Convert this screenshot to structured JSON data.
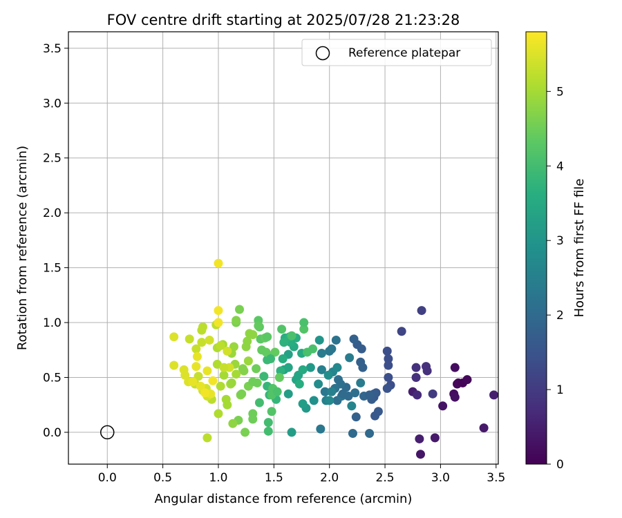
{
  "chart_data": {
    "type": "scatter",
    "title": "FOV centre drift starting at 2025/07/28 21:23:28",
    "xlabel": "Angular distance from reference (arcmin)",
    "ylabel": "Rotation from reference (arcmin)",
    "xlim": [
      -0.35,
      3.52
    ],
    "ylim": [
      -0.29,
      3.65
    ],
    "xticks": [
      "0.0",
      "0.5",
      "1.0",
      "1.5",
      "2.0",
      "2.5",
      "3.0",
      "3.5"
    ],
    "yticks": [
      "0.0",
      "0.5",
      "1.0",
      "1.5",
      "2.0",
      "2.5",
      "3.0",
      "3.5"
    ],
    "grid": true,
    "legend": {
      "placement": "top-right",
      "entries": [
        "Reference platepar"
      ]
    },
    "reference_point": {
      "x": 0.0,
      "y": 0.0,
      "marker": "open-circle"
    },
    "colorbar": {
      "label": "Hours from first FF file",
      "range": [
        0,
        5.8
      ],
      "ticks": [
        "0",
        "1",
        "2",
        "3",
        "4",
        "5"
      ],
      "colormap": "viridis"
    },
    "points": [
      {
        "x": 3.13,
        "y": 0.59,
        "t": 0.2
      },
      {
        "x": 3.15,
        "y": 0.44,
        "t": 0.1
      },
      {
        "x": 3.16,
        "y": 0.45,
        "t": 0.1
      },
      {
        "x": 3.2,
        "y": 0.45,
        "t": 0.05
      },
      {
        "x": 3.24,
        "y": 0.48,
        "t": 0.1
      },
      {
        "x": 3.12,
        "y": 0.35,
        "t": 0.2
      },
      {
        "x": 3.13,
        "y": 0.32,
        "t": 0.25
      },
      {
        "x": 3.02,
        "y": 0.24,
        "t": 0.3
      },
      {
        "x": 2.95,
        "y": -0.05,
        "t": 0.4
      },
      {
        "x": 3.39,
        "y": 0.04,
        "t": 0.4
      },
      {
        "x": 3.48,
        "y": 0.34,
        "t": 0.5
      },
      {
        "x": 2.82,
        "y": -0.2,
        "t": 0.35
      },
      {
        "x": 2.81,
        "y": -0.06,
        "t": 0.5
      },
      {
        "x": 2.75,
        "y": 0.37,
        "t": 0.5
      },
      {
        "x": 2.79,
        "y": 0.34,
        "t": 0.7
      },
      {
        "x": 2.78,
        "y": 0.59,
        "t": 0.8
      },
      {
        "x": 2.78,
        "y": 0.5,
        "t": 0.8
      },
      {
        "x": 2.87,
        "y": 0.6,
        "t": 0.8
      },
      {
        "x": 2.88,
        "y": 0.56,
        "t": 0.8
      },
      {
        "x": 2.93,
        "y": 0.35,
        "t": 1.0
      },
      {
        "x": 2.83,
        "y": 1.11,
        "t": 1.1
      },
      {
        "x": 2.65,
        "y": 0.92,
        "t": 1.2
      },
      {
        "x": 2.52,
        "y": 0.74,
        "t": 1.4
      },
      {
        "x": 2.53,
        "y": 0.67,
        "t": 1.4
      },
      {
        "x": 2.53,
        "y": 0.61,
        "t": 1.4
      },
      {
        "x": 2.53,
        "y": 0.5,
        "t": 1.4
      },
      {
        "x": 2.55,
        "y": 0.43,
        "t": 1.4
      },
      {
        "x": 2.52,
        "y": 0.4,
        "t": 1.5
      },
      {
        "x": 2.44,
        "y": 0.19,
        "t": 1.6
      },
      {
        "x": 2.41,
        "y": 0.15,
        "t": 1.6
      },
      {
        "x": 2.42,
        "y": 0.36,
        "t": 1.6
      },
      {
        "x": 2.4,
        "y": 0.32,
        "t": 1.6
      },
      {
        "x": 2.4,
        "y": 0.35,
        "t": 1.7
      },
      {
        "x": 2.38,
        "y": 0.3,
        "t": 1.7
      },
      {
        "x": 2.29,
        "y": 0.76,
        "t": 1.7
      },
      {
        "x": 2.25,
        "y": 0.8,
        "t": 1.7
      },
      {
        "x": 2.22,
        "y": 0.85,
        "t": 1.8
      },
      {
        "x": 2.28,
        "y": 0.64,
        "t": 1.8
      },
      {
        "x": 2.3,
        "y": 0.59,
        "t": 1.8
      },
      {
        "x": 2.24,
        "y": 0.14,
        "t": 1.8
      },
      {
        "x": 2.21,
        "y": -0.01,
        "t": 2.0
      },
      {
        "x": 2.36,
        "y": -0.01,
        "t": 2.0
      },
      {
        "x": 2.17,
        "y": 0.33,
        "t": 2.0
      },
      {
        "x": 2.15,
        "y": 0.41,
        "t": 2.0
      },
      {
        "x": 2.1,
        "y": 0.44,
        "t": 2.1
      },
      {
        "x": 2.08,
        "y": 0.48,
        "t": 2.1
      },
      {
        "x": 2.07,
        "y": 0.29,
        "t": 2.1
      },
      {
        "x": 2.05,
        "y": 0.4,
        "t": 2.2
      },
      {
        "x": 2.06,
        "y": 0.84,
        "t": 2.2
      },
      {
        "x": 2.0,
        "y": 0.74,
        "t": 2.3
      },
      {
        "x": 2.02,
        "y": 0.76,
        "t": 2.3
      },
      {
        "x": 1.96,
        "y": 0.37,
        "t": 2.3
      },
      {
        "x": 1.92,
        "y": 0.03,
        "t": 2.3
      },
      {
        "x": 2.28,
        "y": 0.45,
        "t": 2.4
      },
      {
        "x": 2.18,
        "y": 0.68,
        "t": 2.4
      },
      {
        "x": 2.2,
        "y": 0.24,
        "t": 2.6
      },
      {
        "x": 1.93,
        "y": 0.72,
        "t": 2.4
      },
      {
        "x": 1.93,
        "y": 0.57,
        "t": 2.5
      },
      {
        "x": 1.97,
        "y": 0.29,
        "t": 2.5
      },
      {
        "x": 2.0,
        "y": 0.29,
        "t": 2.7
      },
      {
        "x": 2.03,
        "y": 0.55,
        "t": 2.6
      },
      {
        "x": 2.07,
        "y": 0.59,
        "t": 2.7
      },
      {
        "x": 1.99,
        "y": 0.52,
        "t": 2.8
      },
      {
        "x": 1.9,
        "y": 0.44,
        "t": 2.8
      },
      {
        "x": 1.86,
        "y": 0.29,
        "t": 2.9
      },
      {
        "x": 1.91,
        "y": 0.84,
        "t": 3.0
      },
      {
        "x": 1.83,
        "y": 0.59,
        "t": 3.1
      },
      {
        "x": 1.79,
        "y": 0.22,
        "t": 3.1
      },
      {
        "x": 1.76,
        "y": 0.26,
        "t": 3.2
      },
      {
        "x": 1.66,
        "y": 0.0,
        "t": 3.2
      },
      {
        "x": 1.63,
        "y": 0.35,
        "t": 3.2
      },
      {
        "x": 1.59,
        "y": 0.57,
        "t": 3.3
      },
      {
        "x": 1.63,
        "y": 0.71,
        "t": 3.3
      },
      {
        "x": 1.63,
        "y": 0.59,
        "t": 3.4
      },
      {
        "x": 1.7,
        "y": 0.48,
        "t": 3.4
      },
      {
        "x": 1.72,
        "y": 0.52,
        "t": 3.4
      },
      {
        "x": 1.76,
        "y": 0.57,
        "t": 3.5
      },
      {
        "x": 1.75,
        "y": 0.72,
        "t": 3.5
      },
      {
        "x": 1.68,
        "y": 0.78,
        "t": 3.5
      },
      {
        "x": 1.65,
        "y": 0.82,
        "t": 3.6
      },
      {
        "x": 1.7,
        "y": 0.86,
        "t": 3.6
      },
      {
        "x": 1.6,
        "y": 0.86,
        "t": 3.6
      },
      {
        "x": 1.64,
        "y": 0.87,
        "t": 3.7
      },
      {
        "x": 1.59,
        "y": 0.82,
        "t": 3.7
      },
      {
        "x": 1.56,
        "y": 0.56,
        "t": 3.7
      },
      {
        "x": 1.52,
        "y": 0.3,
        "t": 3.8
      },
      {
        "x": 1.46,
        "y": 0.34,
        "t": 3.8
      },
      {
        "x": 1.44,
        "y": 0.42,
        "t": 3.8
      },
      {
        "x": 1.46,
        "y": 0.68,
        "t": 3.9
      },
      {
        "x": 1.44,
        "y": 0.66,
        "t": 3.9
      },
      {
        "x": 1.41,
        "y": 0.51,
        "t": 3.9
      },
      {
        "x": 1.37,
        "y": 0.27,
        "t": 4.0
      },
      {
        "x": 1.45,
        "y": 0.09,
        "t": 4.0
      },
      {
        "x": 1.45,
        "y": 0.01,
        "t": 4.0
      },
      {
        "x": 1.66,
        "y": 0.88,
        "t": 4.1
      },
      {
        "x": 1.8,
        "y": 0.73,
        "t": 4.1
      },
      {
        "x": 1.85,
        "y": 0.76,
        "t": 4.1
      },
      {
        "x": 1.48,
        "y": 0.19,
        "t": 4.2
      },
      {
        "x": 1.49,
        "y": 0.4,
        "t": 4.2
      },
      {
        "x": 1.37,
        "y": 0.96,
        "t": 4.3
      },
      {
        "x": 1.36,
        "y": 1.02,
        "t": 4.3
      },
      {
        "x": 1.38,
        "y": 0.85,
        "t": 4.3
      },
      {
        "x": 1.42,
        "y": 0.86,
        "t": 4.4
      },
      {
        "x": 1.39,
        "y": 0.75,
        "t": 4.4
      },
      {
        "x": 1.51,
        "y": 0.73,
        "t": 4.4
      },
      {
        "x": 1.55,
        "y": 0.5,
        "t": 4.4
      },
      {
        "x": 1.35,
        "y": 0.45,
        "t": 4.5
      },
      {
        "x": 1.31,
        "y": 0.17,
        "t": 4.5
      },
      {
        "x": 1.31,
        "y": 0.12,
        "t": 4.5
      },
      {
        "x": 1.24,
        "y": 0.0,
        "t": 4.6
      },
      {
        "x": 1.18,
        "y": 0.11,
        "t": 4.6
      },
      {
        "x": 1.19,
        "y": 1.12,
        "t": 4.6
      },
      {
        "x": 1.16,
        "y": 1.0,
        "t": 4.6
      },
      {
        "x": 1.16,
        "y": 1.02,
        "t": 4.7
      },
      {
        "x": 1.22,
        "y": 0.58,
        "t": 4.7
      },
      {
        "x": 1.23,
        "y": 0.56,
        "t": 4.7
      },
      {
        "x": 1.2,
        "y": 0.34,
        "t": 4.7
      },
      {
        "x": 1.13,
        "y": 0.08,
        "t": 4.8
      },
      {
        "x": 1.28,
        "y": 0.9,
        "t": 4.8
      },
      {
        "x": 1.31,
        "y": 0.89,
        "t": 4.8
      },
      {
        "x": 1.26,
        "y": 0.83,
        "t": 4.8
      },
      {
        "x": 1.25,
        "y": 0.78,
        "t": 4.8
      },
      {
        "x": 1.27,
        "y": 0.65,
        "t": 4.9
      },
      {
        "x": 1.14,
        "y": 0.78,
        "t": 4.9
      },
      {
        "x": 1.12,
        "y": 0.72,
        "t": 4.9
      },
      {
        "x": 1.15,
        "y": 0.62,
        "t": 4.9
      },
      {
        "x": 1.16,
        "y": 0.53,
        "t": 5.0
      },
      {
        "x": 1.11,
        "y": 0.44,
        "t": 5.0
      },
      {
        "x": 1.08,
        "y": 0.25,
        "t": 5.0
      },
      {
        "x": 1.04,
        "y": 0.8,
        "t": 5.0
      },
      {
        "x": 1.05,
        "y": 0.52,
        "t": 5.0
      },
      {
        "x": 1.02,
        "y": 0.42,
        "t": 5.1
      },
      {
        "x": 1.0,
        "y": 0.17,
        "t": 5.1
      },
      {
        "x": 0.99,
        "y": 0.77,
        "t": 5.1
      },
      {
        "x": 0.99,
        "y": 0.62,
        "t": 5.1
      },
      {
        "x": 0.98,
        "y": 0.98,
        "t": 5.2
      },
      {
        "x": 0.94,
        "y": 0.3,
        "t": 5.2
      },
      {
        "x": 0.9,
        "y": -0.05,
        "t": 5.2
      },
      {
        "x": 0.86,
        "y": 0.96,
        "t": 5.2
      },
      {
        "x": 0.85,
        "y": 0.93,
        "t": 5.2
      },
      {
        "x": 0.85,
        "y": 0.82,
        "t": 5.3
      },
      {
        "x": 0.8,
        "y": 0.76,
        "t": 5.3
      },
      {
        "x": 0.82,
        "y": 0.51,
        "t": 5.3
      },
      {
        "x": 0.79,
        "y": 0.44,
        "t": 5.3
      },
      {
        "x": 0.74,
        "y": 0.85,
        "t": 5.3
      },
      {
        "x": 0.9,
        "y": 0.33,
        "t": 5.4
      },
      {
        "x": 0.89,
        "y": 0.4,
        "t": 5.4
      },
      {
        "x": 0.86,
        "y": 0.38,
        "t": 5.4
      },
      {
        "x": 1.08,
        "y": 0.74,
        "t": 5.4
      },
      {
        "x": 1.1,
        "y": 0.59,
        "t": 5.4
      },
      {
        "x": 0.92,
        "y": 0.84,
        "t": 5.4
      },
      {
        "x": 0.6,
        "y": 0.87,
        "t": 5.5
      },
      {
        "x": 0.6,
        "y": 0.61,
        "t": 5.5
      },
      {
        "x": 0.69,
        "y": 0.57,
        "t": 5.5
      },
      {
        "x": 0.7,
        "y": 0.52,
        "t": 5.5
      },
      {
        "x": 0.73,
        "y": 0.46,
        "t": 5.5
      },
      {
        "x": 0.77,
        "y": 0.46,
        "t": 5.6
      },
      {
        "x": 0.8,
        "y": 0.6,
        "t": 5.6
      },
      {
        "x": 0.81,
        "y": 0.69,
        "t": 5.6
      },
      {
        "x": 0.84,
        "y": 0.42,
        "t": 5.6
      },
      {
        "x": 0.9,
        "y": 0.56,
        "t": 5.6
      },
      {
        "x": 0.93,
        "y": 0.35,
        "t": 5.6
      },
      {
        "x": 1.0,
        "y": 1.54,
        "t": 5.7
      },
      {
        "x": 1.0,
        "y": 1.11,
        "t": 5.7
      },
      {
        "x": 1.0,
        "y": 1.0,
        "t": 5.7
      },
      {
        "x": 0.95,
        "y": 0.47,
        "t": 5.7
      },
      {
        "x": 0.88,
        "y": 0.36,
        "t": 5.7
      },
      {
        "x": 1.05,
        "y": 0.59,
        "t": 5.3
      },
      {
        "x": 1.02,
        "y": 0.79,
        "t": 5.2
      },
      {
        "x": 1.12,
        "y": 0.45,
        "t": 4.9
      },
      {
        "x": 1.07,
        "y": 0.3,
        "t": 5.0
      },
      {
        "x": 1.27,
        "y": 0.42,
        "t": 4.6
      },
      {
        "x": 1.31,
        "y": 0.46,
        "t": 4.5
      },
      {
        "x": 1.34,
        "y": 0.58,
        "t": 4.5
      },
      {
        "x": 1.43,
        "y": 0.73,
        "t": 4.4
      },
      {
        "x": 1.48,
        "y": 0.34,
        "t": 4.2
      },
      {
        "x": 1.53,
        "y": 0.37,
        "t": 4.1
      },
      {
        "x": 1.57,
        "y": 0.94,
        "t": 4.2
      },
      {
        "x": 1.77,
        "y": 0.94,
        "t": 4.2
      },
      {
        "x": 1.77,
        "y": 1.0,
        "t": 4.1
      },
      {
        "x": 1.73,
        "y": 0.44,
        "t": 3.6
      },
      {
        "x": 1.58,
        "y": 0.67,
        "t": 3.6
      },
      {
        "x": 2.02,
        "y": 0.37,
        "t": 2.5
      },
      {
        "x": 2.11,
        "y": 0.33,
        "t": 2.2
      },
      {
        "x": 2.12,
        "y": 0.35,
        "t": 2.0
      },
      {
        "x": 2.31,
        "y": 0.33,
        "t": 1.9
      },
      {
        "x": 2.36,
        "y": 0.34,
        "t": 1.8
      },
      {
        "x": 2.23,
        "y": 0.36,
        "t": 2.1
      },
      {
        "x": 1.44,
        "y": 0.87,
        "t": 4.3
      },
      {
        "x": 1.47,
        "y": 0.67,
        "t": 3.9
      },
      {
        "x": 1.21,
        "y": 0.35,
        "t": 4.6
      },
      {
        "x": 1.36,
        "y": 0.97,
        "t": 4.4
      }
    ]
  }
}
